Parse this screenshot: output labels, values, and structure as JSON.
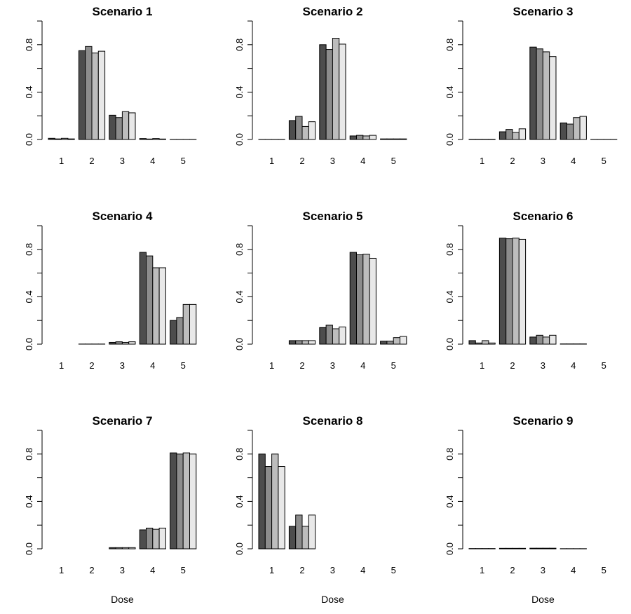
{
  "colors": {
    "series": [
      "#4d4d4d",
      "#8c8c8c",
      "#bdbdbd",
      "#e8e8e8"
    ],
    "axis": "#000000",
    "background": "#ffffff"
  },
  "chart_data": [
    {
      "type": "bar",
      "title": "Scenario 1",
      "xlabel": "",
      "categories": [
        "1",
        "2",
        "3",
        "4",
        "5"
      ],
      "yticks": [
        "0.0",
        "0.4",
        "0.8"
      ],
      "ylim": [
        0,
        1
      ],
      "series": [
        {
          "values": [
            0.01,
            0.75,
            0.205,
            0.008,
            0.001
          ]
        },
        {
          "values": [
            0.005,
            0.785,
            0.185,
            0.004,
            0.001
          ]
        },
        {
          "values": [
            0.01,
            0.73,
            0.235,
            0.008,
            0.001
          ]
        },
        {
          "values": [
            0.005,
            0.745,
            0.225,
            0.004,
            0.001
          ]
        }
      ]
    },
    {
      "type": "bar",
      "title": "Scenario 2",
      "xlabel": "",
      "categories": [
        "1",
        "2",
        "3",
        "4",
        "5"
      ],
      "yticks": [
        "0.0",
        "0.4",
        "0.8"
      ],
      "ylim": [
        0,
        1
      ],
      "series": [
        {
          "values": [
            0.001,
            0.16,
            0.8,
            0.03,
            0.005
          ]
        },
        {
          "values": [
            0.001,
            0.195,
            0.76,
            0.035,
            0.005
          ]
        },
        {
          "values": [
            0.001,
            0.11,
            0.855,
            0.03,
            0.005
          ]
        },
        {
          "values": [
            0.001,
            0.15,
            0.805,
            0.035,
            0.005
          ]
        }
      ]
    },
    {
      "type": "bar",
      "title": "Scenario 3",
      "xlabel": "",
      "categories": [
        "1",
        "2",
        "3",
        "4",
        "5"
      ],
      "yticks": [
        "0.0",
        "0.4",
        "0.8"
      ],
      "ylim": [
        0,
        1
      ],
      "series": [
        {
          "values": [
            0.002,
            0.065,
            0.78,
            0.14,
            0.001
          ]
        },
        {
          "values": [
            0.002,
            0.085,
            0.765,
            0.13,
            0.001
          ]
        },
        {
          "values": [
            0.002,
            0.06,
            0.74,
            0.185,
            0.001
          ]
        },
        {
          "values": [
            0.002,
            0.09,
            0.7,
            0.195,
            0.001
          ]
        }
      ]
    },
    {
      "type": "bar",
      "title": "Scenario 4",
      "xlabel": "",
      "categories": [
        "1",
        "2",
        "3",
        "4",
        "5"
      ],
      "yticks": [
        "0.0",
        "0.4",
        "0.8"
      ],
      "ylim": [
        0,
        1
      ],
      "series": [
        {
          "values": [
            0.0,
            0.001,
            0.015,
            0.775,
            0.2
          ]
        },
        {
          "values": [
            0.0,
            0.001,
            0.02,
            0.745,
            0.225
          ]
        },
        {
          "values": [
            0.0,
            0.001,
            0.015,
            0.645,
            0.335
          ]
        },
        {
          "values": [
            0.0,
            0.001,
            0.02,
            0.645,
            0.335
          ]
        }
      ]
    },
    {
      "type": "bar",
      "title": "Scenario 5",
      "xlabel": "",
      "categories": [
        "1",
        "2",
        "3",
        "4",
        "5"
      ],
      "yticks": [
        "0.0",
        "0.4",
        "0.8"
      ],
      "ylim": [
        0,
        1
      ],
      "series": [
        {
          "values": [
            0.0,
            0.03,
            0.14,
            0.775,
            0.025
          ]
        },
        {
          "values": [
            0.0,
            0.03,
            0.16,
            0.755,
            0.025
          ]
        },
        {
          "values": [
            0.0,
            0.03,
            0.13,
            0.76,
            0.055
          ]
        },
        {
          "values": [
            0.0,
            0.03,
            0.145,
            0.725,
            0.065
          ]
        }
      ]
    },
    {
      "type": "bar",
      "title": "Scenario 6",
      "xlabel": "",
      "categories": [
        "1",
        "2",
        "3",
        "4",
        "5"
      ],
      "yticks": [
        "0.0",
        "0.4",
        "0.8"
      ],
      "ylim": [
        0,
        1
      ],
      "series": [
        {
          "values": [
            0.03,
            0.895,
            0.06,
            0.002,
            0.0
          ]
        },
        {
          "values": [
            0.01,
            0.89,
            0.075,
            0.002,
            0.0
          ]
        },
        {
          "values": [
            0.03,
            0.895,
            0.06,
            0.002,
            0.0
          ]
        },
        {
          "values": [
            0.01,
            0.885,
            0.075,
            0.002,
            0.0
          ]
        }
      ]
    },
    {
      "type": "bar",
      "title": "Scenario 7",
      "xlabel": "Dose",
      "categories": [
        "1",
        "2",
        "3",
        "4",
        "5"
      ],
      "yticks": [
        "0.0",
        "0.4",
        "0.8"
      ],
      "ylim": [
        0,
        1
      ],
      "series": [
        {
          "values": [
            0.0,
            0.0,
            0.01,
            0.16,
            0.81
          ]
        },
        {
          "values": [
            0.0,
            0.0,
            0.01,
            0.175,
            0.8
          ]
        },
        {
          "values": [
            0.0,
            0.0,
            0.01,
            0.165,
            0.81
          ]
        },
        {
          "values": [
            0.0,
            0.0,
            0.01,
            0.175,
            0.8
          ]
        }
      ]
    },
    {
      "type": "bar",
      "title": "Scenario 8",
      "xlabel": "Dose",
      "categories": [
        "1",
        "2",
        "3",
        "4",
        "5"
      ],
      "yticks": [
        "0.0",
        "0.4",
        "0.8"
      ],
      "ylim": [
        0,
        1
      ],
      "series": [
        {
          "values": [
            0.8,
            0.19,
            0.0,
            0.0,
            0.0
          ]
        },
        {
          "values": [
            0.695,
            0.285,
            0.0,
            0.0,
            0.0
          ]
        },
        {
          "values": [
            0.8,
            0.19,
            0.0,
            0.0,
            0.0
          ]
        },
        {
          "values": [
            0.695,
            0.285,
            0.0,
            0.0,
            0.0
          ]
        }
      ]
    },
    {
      "type": "bar",
      "title": "Scenario 9",
      "xlabel": "Dose",
      "categories": [
        "1",
        "2",
        "3",
        "4",
        "5"
      ],
      "yticks": [
        "0.0",
        "0.4",
        "0.8"
      ],
      "ylim": [
        0,
        1
      ],
      "series": [
        {
          "values": [
            0.002,
            0.004,
            0.005,
            0.001,
            0.0
          ]
        },
        {
          "values": [
            0.002,
            0.004,
            0.005,
            0.001,
            0.0
          ]
        },
        {
          "values": [
            0.002,
            0.004,
            0.005,
            0.001,
            0.0
          ]
        },
        {
          "values": [
            0.002,
            0.004,
            0.005,
            0.001,
            0.0
          ]
        }
      ]
    }
  ]
}
